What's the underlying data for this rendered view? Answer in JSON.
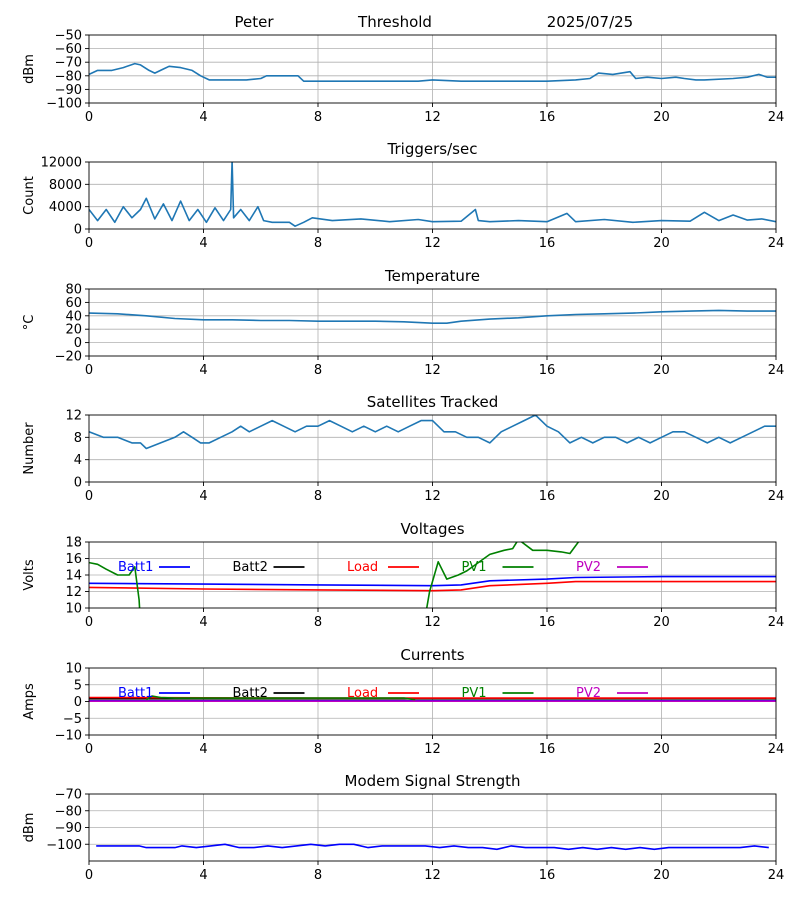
{
  "header": {
    "name": "Peter",
    "mode": "Threshold",
    "date": "2025/07/25"
  },
  "colors": {
    "series_default": "#1f77b4",
    "batt1": "#0000ff",
    "batt2": "#000000",
    "load": "#ff0000",
    "pv1": "#008000",
    "pv2": "#bf00bf",
    "grid": "#b0b0b0"
  },
  "chart_data": [
    {
      "id": "threshold",
      "type": "line",
      "title": "",
      "xlabel": "",
      "ylabel": "dBm",
      "xlim": [
        0,
        24
      ],
      "ylim": [
        -100,
        -50
      ],
      "xticks": [
        0,
        4,
        8,
        12,
        16,
        20,
        24
      ],
      "yticks": [
        -100,
        -90,
        -80,
        -70,
        -60,
        -50
      ],
      "grid": true,
      "series": [
        {
          "color": "#1f77b4",
          "x": [
            0,
            0.3,
            0.8,
            1.2,
            1.6,
            1.8,
            2.1,
            2.3,
            2.6,
            2.8,
            3.2,
            3.6,
            3.9,
            4.2,
            4.6,
            5.5,
            6.0,
            6.2,
            7.0,
            7.3,
            7.5,
            8.5,
            9.5,
            10.5,
            11.5,
            12.0,
            13.0,
            14.0,
            15.0,
            16.0,
            17.0,
            17.5,
            17.8,
            18.3,
            18.9,
            19.1,
            19.5,
            20.0,
            20.5,
            20.8,
            21.2,
            21.5,
            22.5,
            23.0,
            23.4,
            23.7,
            24.0
          ],
          "y": [
            -79,
            -76,
            -76,
            -74,
            -71,
            -72,
            -76,
            -78,
            -75,
            -73,
            -74,
            -76,
            -80,
            -83,
            -83,
            -83,
            -82,
            -80,
            -80,
            -80,
            -84,
            -84,
            -84,
            -84,
            -84,
            -83,
            -84,
            -84,
            -84,
            -84,
            -83,
            -82,
            -78,
            -79,
            -77,
            -82,
            -81,
            -82,
            -81,
            -82,
            -83,
            -83,
            -82,
            -81,
            -79,
            -81,
            -81
          ]
        }
      ]
    },
    {
      "id": "triggers",
      "type": "line",
      "title": "Triggers/sec",
      "xlabel": "",
      "ylabel": "Count",
      "xlim": [
        0,
        24
      ],
      "ylim": [
        0,
        12000
      ],
      "xticks": [
        0,
        4,
        8,
        12,
        16,
        20,
        24
      ],
      "yticks": [
        0,
        4000,
        8000,
        12000
      ],
      "grid": true,
      "series": [
        {
          "color": "#1f77b4",
          "x": [
            0,
            0.3,
            0.6,
            0.9,
            1.2,
            1.5,
            1.8,
            2.0,
            2.3,
            2.6,
            2.9,
            3.2,
            3.5,
            3.8,
            4.1,
            4.4,
            4.7,
            4.95,
            5.0,
            5.05,
            5.3,
            5.6,
            5.9,
            6.1,
            6.4,
            7.0,
            7.2,
            7.5,
            7.8,
            8.5,
            9.5,
            10.5,
            11.5,
            12.0,
            13.0,
            13.5,
            13.6,
            14.0,
            15.0,
            16.0,
            16.7,
            17.0,
            18.0,
            19.0,
            20.0,
            21.0,
            21.5,
            22.0,
            22.5,
            23.0,
            23.5,
            24.0
          ],
          "y": [
            3500,
            1500,
            3500,
            1200,
            4000,
            2000,
            3500,
            5500,
            1800,
            4500,
            1500,
            5000,
            1500,
            3500,
            1200,
            3800,
            1500,
            3500,
            12200,
            2000,
            3500,
            1500,
            4000,
            1500,
            1200,
            1200,
            500,
            1200,
            2000,
            1500,
            1800,
            1300,
            1700,
            1300,
            1400,
            3500,
            1500,
            1300,
            1500,
            1300,
            2800,
            1300,
            1700,
            1200,
            1500,
            1400,
            3000,
            1500,
            2500,
            1600,
            1800,
            1300
          ]
        }
      ]
    },
    {
      "id": "temperature",
      "type": "line",
      "title": "Temperature",
      "xlabel": "",
      "ylabel": "°C",
      "xlim": [
        0,
        24
      ],
      "ylim": [
        -20,
        80
      ],
      "xticks": [
        0,
        4,
        8,
        12,
        16,
        20,
        24
      ],
      "yticks": [
        -20,
        0,
        20,
        40,
        60,
        80
      ],
      "grid": true,
      "series": [
        {
          "color": "#1f77b4",
          "x": [
            0,
            1,
            2,
            3,
            4,
            5,
            6,
            7,
            8,
            9,
            10,
            11,
            12,
            12.5,
            13,
            14,
            15,
            16,
            17,
            18,
            19,
            20,
            21,
            22,
            23,
            24
          ],
          "y": [
            44,
            43,
            40,
            36,
            34,
            34,
            33,
            33,
            32,
            32,
            32,
            31,
            29,
            29,
            32,
            35,
            37,
            40,
            42,
            43,
            44,
            46,
            47,
            48,
            47,
            47
          ]
        }
      ]
    },
    {
      "id": "satellites",
      "type": "line",
      "title": "Satellites Tracked",
      "xlabel": "",
      "ylabel": "Number",
      "xlim": [
        0,
        24
      ],
      "ylim": [
        0,
        12
      ],
      "xticks": [
        0,
        4,
        8,
        12,
        16,
        20,
        24
      ],
      "yticks": [
        0,
        4,
        8,
        12
      ],
      "grid": true,
      "series": [
        {
          "color": "#1f77b4",
          "x": [
            0,
            0.5,
            1.0,
            1.5,
            1.8,
            2.0,
            2.5,
            3.0,
            3.3,
            3.6,
            3.9,
            4.2,
            4.6,
            5.0,
            5.3,
            5.6,
            6.0,
            6.4,
            6.8,
            7.2,
            7.6,
            8.0,
            8.4,
            8.8,
            9.2,
            9.6,
            10.0,
            10.4,
            10.8,
            11.2,
            11.6,
            12.0,
            12.4,
            12.8,
            13.2,
            13.6,
            14.0,
            14.4,
            14.8,
            15.2,
            15.6,
            16.0,
            16.4,
            16.8,
            17.2,
            17.6,
            18.0,
            18.4,
            18.8,
            19.2,
            19.6,
            20.0,
            20.4,
            20.8,
            21.2,
            21.6,
            22.0,
            22.4,
            22.8,
            23.2,
            23.6,
            24.0
          ],
          "y": [
            9,
            8,
            8,
            7,
            7,
            6,
            7,
            8,
            9,
            8,
            7,
            7,
            8,
            9,
            10,
            9,
            10,
            11,
            10,
            9,
            10,
            10,
            11,
            10,
            9,
            10,
            9,
            10,
            9,
            10,
            11,
            11,
            9,
            9,
            8,
            8,
            7,
            9,
            10,
            11,
            12,
            10,
            9,
            7,
            8,
            7,
            8,
            8,
            7,
            8,
            7,
            8,
            9,
            9,
            8,
            7,
            8,
            7,
            8,
            9,
            10,
            10
          ]
        }
      ]
    },
    {
      "id": "voltages",
      "type": "line",
      "title": "Voltages",
      "xlabel": "",
      "ylabel": "Volts",
      "xlim": [
        0,
        24
      ],
      "ylim": [
        10,
        18
      ],
      "xticks": [
        0,
        4,
        8,
        12,
        16,
        20,
        24
      ],
      "yticks": [
        10,
        12,
        14,
        16,
        18
      ],
      "grid": true,
      "legend": "top, horizontal",
      "series": [
        {
          "name": "Batt1",
          "color": "#0000ff",
          "x": [
            0,
            4,
            8,
            12,
            13,
            14,
            16,
            17,
            20,
            24
          ],
          "y": [
            13.0,
            12.9,
            12.8,
            12.7,
            12.8,
            13.3,
            13.5,
            13.7,
            13.8,
            13.8
          ]
        },
        {
          "name": "Batt2",
          "color": "#000000",
          "x": [],
          "y": []
        },
        {
          "name": "Load",
          "color": "#ff0000",
          "x": [
            0,
            4,
            8,
            12,
            13,
            14,
            16,
            17,
            20,
            24
          ],
          "y": [
            12.5,
            12.3,
            12.2,
            12.1,
            12.2,
            12.7,
            13.0,
            13.2,
            13.2,
            13.2
          ]
        },
        {
          "name": "PV1",
          "color": "#008000",
          "x": [
            0,
            0.3,
            0.6,
            1.0,
            1.2,
            1.4,
            1.6,
            1.75,
            1.8,
            11.7,
            11.9,
            12.2,
            12.5,
            12.9,
            13.2,
            13.6,
            14.0,
            14.5,
            14.8,
            15.0,
            15.5,
            16.0,
            16.5,
            16.8,
            17.2
          ],
          "y": [
            15.5,
            15.3,
            14.7,
            14.0,
            14.0,
            14.0,
            15.0,
            11.0,
            8.0,
            8.0,
            12.0,
            15.6,
            13.5,
            14.0,
            14.5,
            15.5,
            16.5,
            17.0,
            17.2,
            18.3,
            17.0,
            17.0,
            16.8,
            16.6,
            18.5
          ]
        },
        {
          "name": "PV2",
          "color": "#bf00bf",
          "x": [],
          "y": []
        }
      ]
    },
    {
      "id": "currents",
      "type": "line",
      "title": "Currents",
      "xlabel": "",
      "ylabel": "Amps",
      "xlim": [
        0,
        24
      ],
      "ylim": [
        -10,
        10
      ],
      "xticks": [
        0,
        4,
        8,
        12,
        16,
        20,
        24
      ],
      "yticks": [
        -10,
        -5,
        0,
        5,
        10
      ],
      "grid": true,
      "legend": "top, horizontal",
      "series": [
        {
          "name": "Batt1",
          "color": "#0000ff",
          "x": [
            0,
            24
          ],
          "y": [
            0.2,
            0.2
          ]
        },
        {
          "name": "Batt2",
          "color": "#000000",
          "x": [
            0,
            24
          ],
          "y": [
            0.8,
            0.8
          ]
        },
        {
          "name": "Load",
          "color": "#ff0000",
          "x": [
            0,
            4,
            8,
            12,
            16,
            20,
            24
          ],
          "y": [
            1.2,
            1.1,
            1.0,
            1.0,
            1.0,
            1.0,
            1.0
          ]
        },
        {
          "name": "PV1",
          "color": "#008000",
          "x": [
            2.0,
            2.2,
            2.5,
            3.0,
            4.0,
            8.0,
            11.0,
            11.4
          ],
          "y": [
            0.5,
            1.6,
            1.2,
            1.0,
            1.0,
            1.0,
            1.0,
            0.5
          ]
        },
        {
          "name": "PV2",
          "color": "#bf00bf",
          "x": [
            0,
            24
          ],
          "y": [
            0.1,
            0.1
          ]
        }
      ]
    },
    {
      "id": "modem",
      "type": "line",
      "title": "Modem Signal Strength",
      "xlabel": "",
      "ylabel": "dBm",
      "xlim": [
        0,
        24
      ],
      "ylim": [
        -110,
        -70
      ],
      "xticks": [
        0,
        4,
        8,
        12,
        16,
        20,
        24
      ],
      "yticks": [
        -100,
        -90,
        -80,
        -70
      ],
      "grid": true,
      "series": [
        {
          "color": "#0000ff",
          "x": [
            0.25,
            1.0,
            1.5,
            1.75,
            2.0,
            2.5,
            3.0,
            3.25,
            3.75,
            4.25,
            4.75,
            5.25,
            5.75,
            6.25,
            6.75,
            7.25,
            7.75,
            8.25,
            8.75,
            9.25,
            9.75,
            10.25,
            10.75,
            11.25,
            11.75,
            12.25,
            12.75,
            13.25,
            13.75,
            14.25,
            14.75,
            15.25,
            15.75,
            16.25,
            16.75,
            17.25,
            17.75,
            18.25,
            18.75,
            19.25,
            19.75,
            20.25,
            20.75,
            21.25,
            21.75,
            22.25,
            22.75,
            23.25,
            23.75
          ],
          "y": [
            -101,
            -101,
            -101,
            -101,
            -102,
            -102,
            -102,
            -101,
            -102,
            -101,
            -100,
            -102,
            -102,
            -101,
            -102,
            -101,
            -100,
            -101,
            -100,
            -100,
            -102,
            -101,
            -101,
            -101,
            -101,
            -102,
            -101,
            -102,
            -102,
            -103,
            -101,
            -102,
            -102,
            -102,
            -103,
            -102,
            -103,
            -102,
            -103,
            -102,
            -103,
            -102,
            -102,
            -102,
            -102,
            -102,
            -102,
            -101,
            -102
          ]
        }
      ]
    }
  ]
}
